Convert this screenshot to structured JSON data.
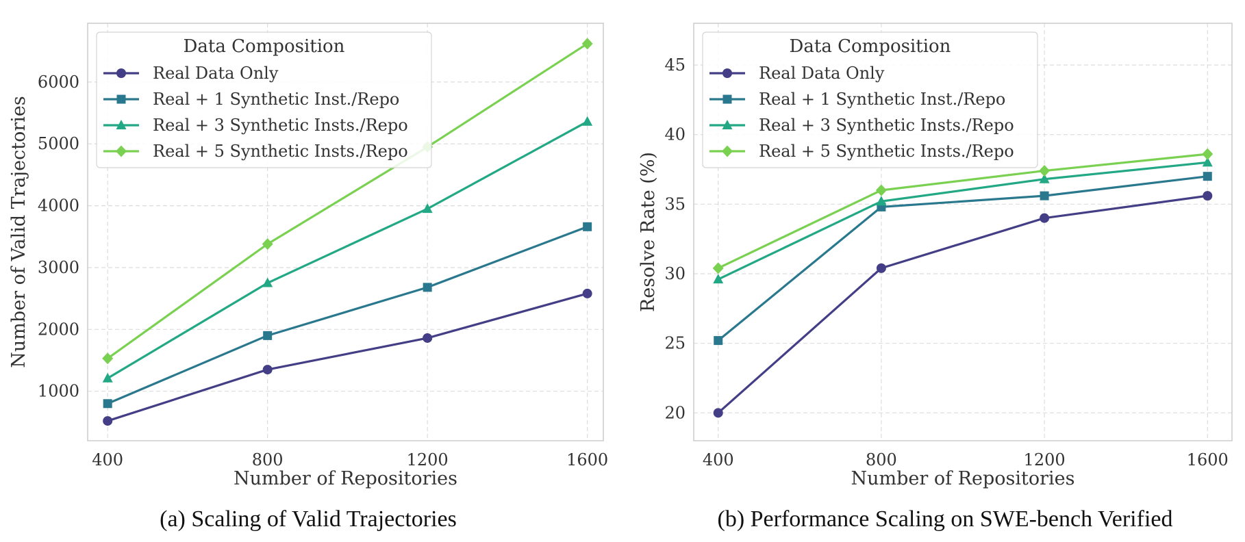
{
  "chart_data": [
    {
      "type": "line",
      "title": "",
      "xlabel": "Number of Repositories",
      "ylabel": "Number of Valid Trajectories",
      "caption": "(a) Scaling of Valid Trajectories",
      "x": [
        400,
        800,
        1200,
        1600
      ],
      "xticks": [
        400,
        800,
        1200,
        1600
      ],
      "yticks": [
        1000,
        2000,
        3000,
        4000,
        5000,
        6000
      ],
      "xlim": [
        350,
        1640
      ],
      "ylim": [
        200,
        6950
      ],
      "grid": true,
      "legend": {
        "title": "Data Composition",
        "position": "upper-left"
      },
      "series": [
        {
          "name": "Real Data Only",
          "marker": "circle",
          "color": "#433e85",
          "values": [
            520,
            1350,
            1860,
            2580
          ]
        },
        {
          "name": "Real + 1 Synthetic Inst./Repo",
          "marker": "square",
          "color": "#2a788e",
          "values": [
            800,
            1900,
            2680,
            3660
          ]
        },
        {
          "name": "Real + 3 Synthetic Insts./Repo",
          "marker": "triangle",
          "color": "#22a884",
          "values": [
            1210,
            2750,
            3950,
            5360
          ]
        },
        {
          "name": "Real + 5 Synthetic Insts./Repo",
          "marker": "diamond",
          "color": "#7ad151",
          "values": [
            1530,
            3380,
            4950,
            6620
          ]
        }
      ]
    },
    {
      "type": "line",
      "title": "",
      "xlabel": "Number of Repositories",
      "ylabel": "Resolve Rate (%)",
      "caption": "(b) Performance Scaling on SWE-bench Verified",
      "x": [
        400,
        800,
        1200,
        1600
      ],
      "xticks": [
        400,
        800,
        1200,
        1600
      ],
      "yticks": [
        20,
        25,
        30,
        35,
        40,
        45
      ],
      "xlim": [
        340,
        1660
      ],
      "ylim": [
        18,
        48
      ],
      "grid": true,
      "legend": {
        "title": "Data Composition",
        "position": "upper-left"
      },
      "series": [
        {
          "name": "Real Data Only",
          "marker": "circle",
          "color": "#433e85",
          "values": [
            20.0,
            30.4,
            34.0,
            35.6
          ]
        },
        {
          "name": "Real + 1 Synthetic Inst./Repo",
          "marker": "square",
          "color": "#2a788e",
          "values": [
            25.2,
            34.8,
            35.6,
            37.0
          ]
        },
        {
          "name": "Real + 3 Synthetic Insts./Repo",
          "marker": "triangle",
          "color": "#22a884",
          "values": [
            29.6,
            35.2,
            36.8,
            38.0
          ]
        },
        {
          "name": "Real + 5 Synthetic Insts./Repo",
          "marker": "diamond",
          "color": "#7ad151",
          "values": [
            30.4,
            36.0,
            37.4,
            38.6
          ]
        }
      ]
    }
  ]
}
